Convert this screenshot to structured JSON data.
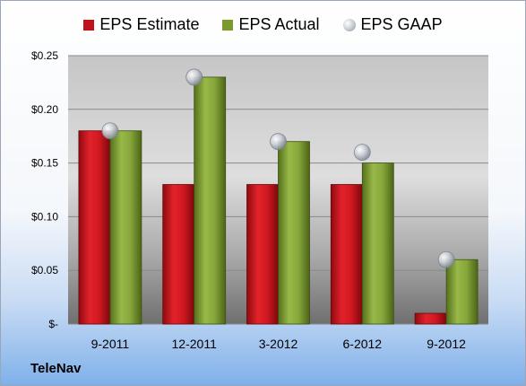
{
  "chart_data": {
    "type": "bar",
    "categories": [
      "9-2011",
      "12-2011",
      "3-2012",
      "6-2012",
      "9-2012"
    ],
    "series": [
      {
        "name": "EPS Estimate",
        "values": [
          0.18,
          0.13,
          0.13,
          0.13,
          0.01
        ],
        "color": "#c0121a"
      },
      {
        "name": "EPS Actual",
        "values": [
          0.18,
          0.23,
          0.17,
          0.15,
          0.06
        ],
        "color": "#7a9a2f"
      }
    ],
    "gaap": {
      "name": "EPS GAAP",
      "values": [
        0.18,
        0.23,
        0.17,
        0.16,
        0.06
      ]
    },
    "yticks": [
      {
        "value": 0.25,
        "label": "$0.25"
      },
      {
        "value": 0.2,
        "label": "$0.20"
      },
      {
        "value": 0.15,
        "label": "$0.15"
      },
      {
        "value": 0.1,
        "label": "$0.10"
      },
      {
        "value": 0.05,
        "label": "$0.05"
      },
      {
        "value": 0,
        "label": "$-"
      }
    ],
    "ylim": [
      0,
      0.25
    ],
    "grid": true,
    "legend_position": "top"
  },
  "company": "TeleNav"
}
